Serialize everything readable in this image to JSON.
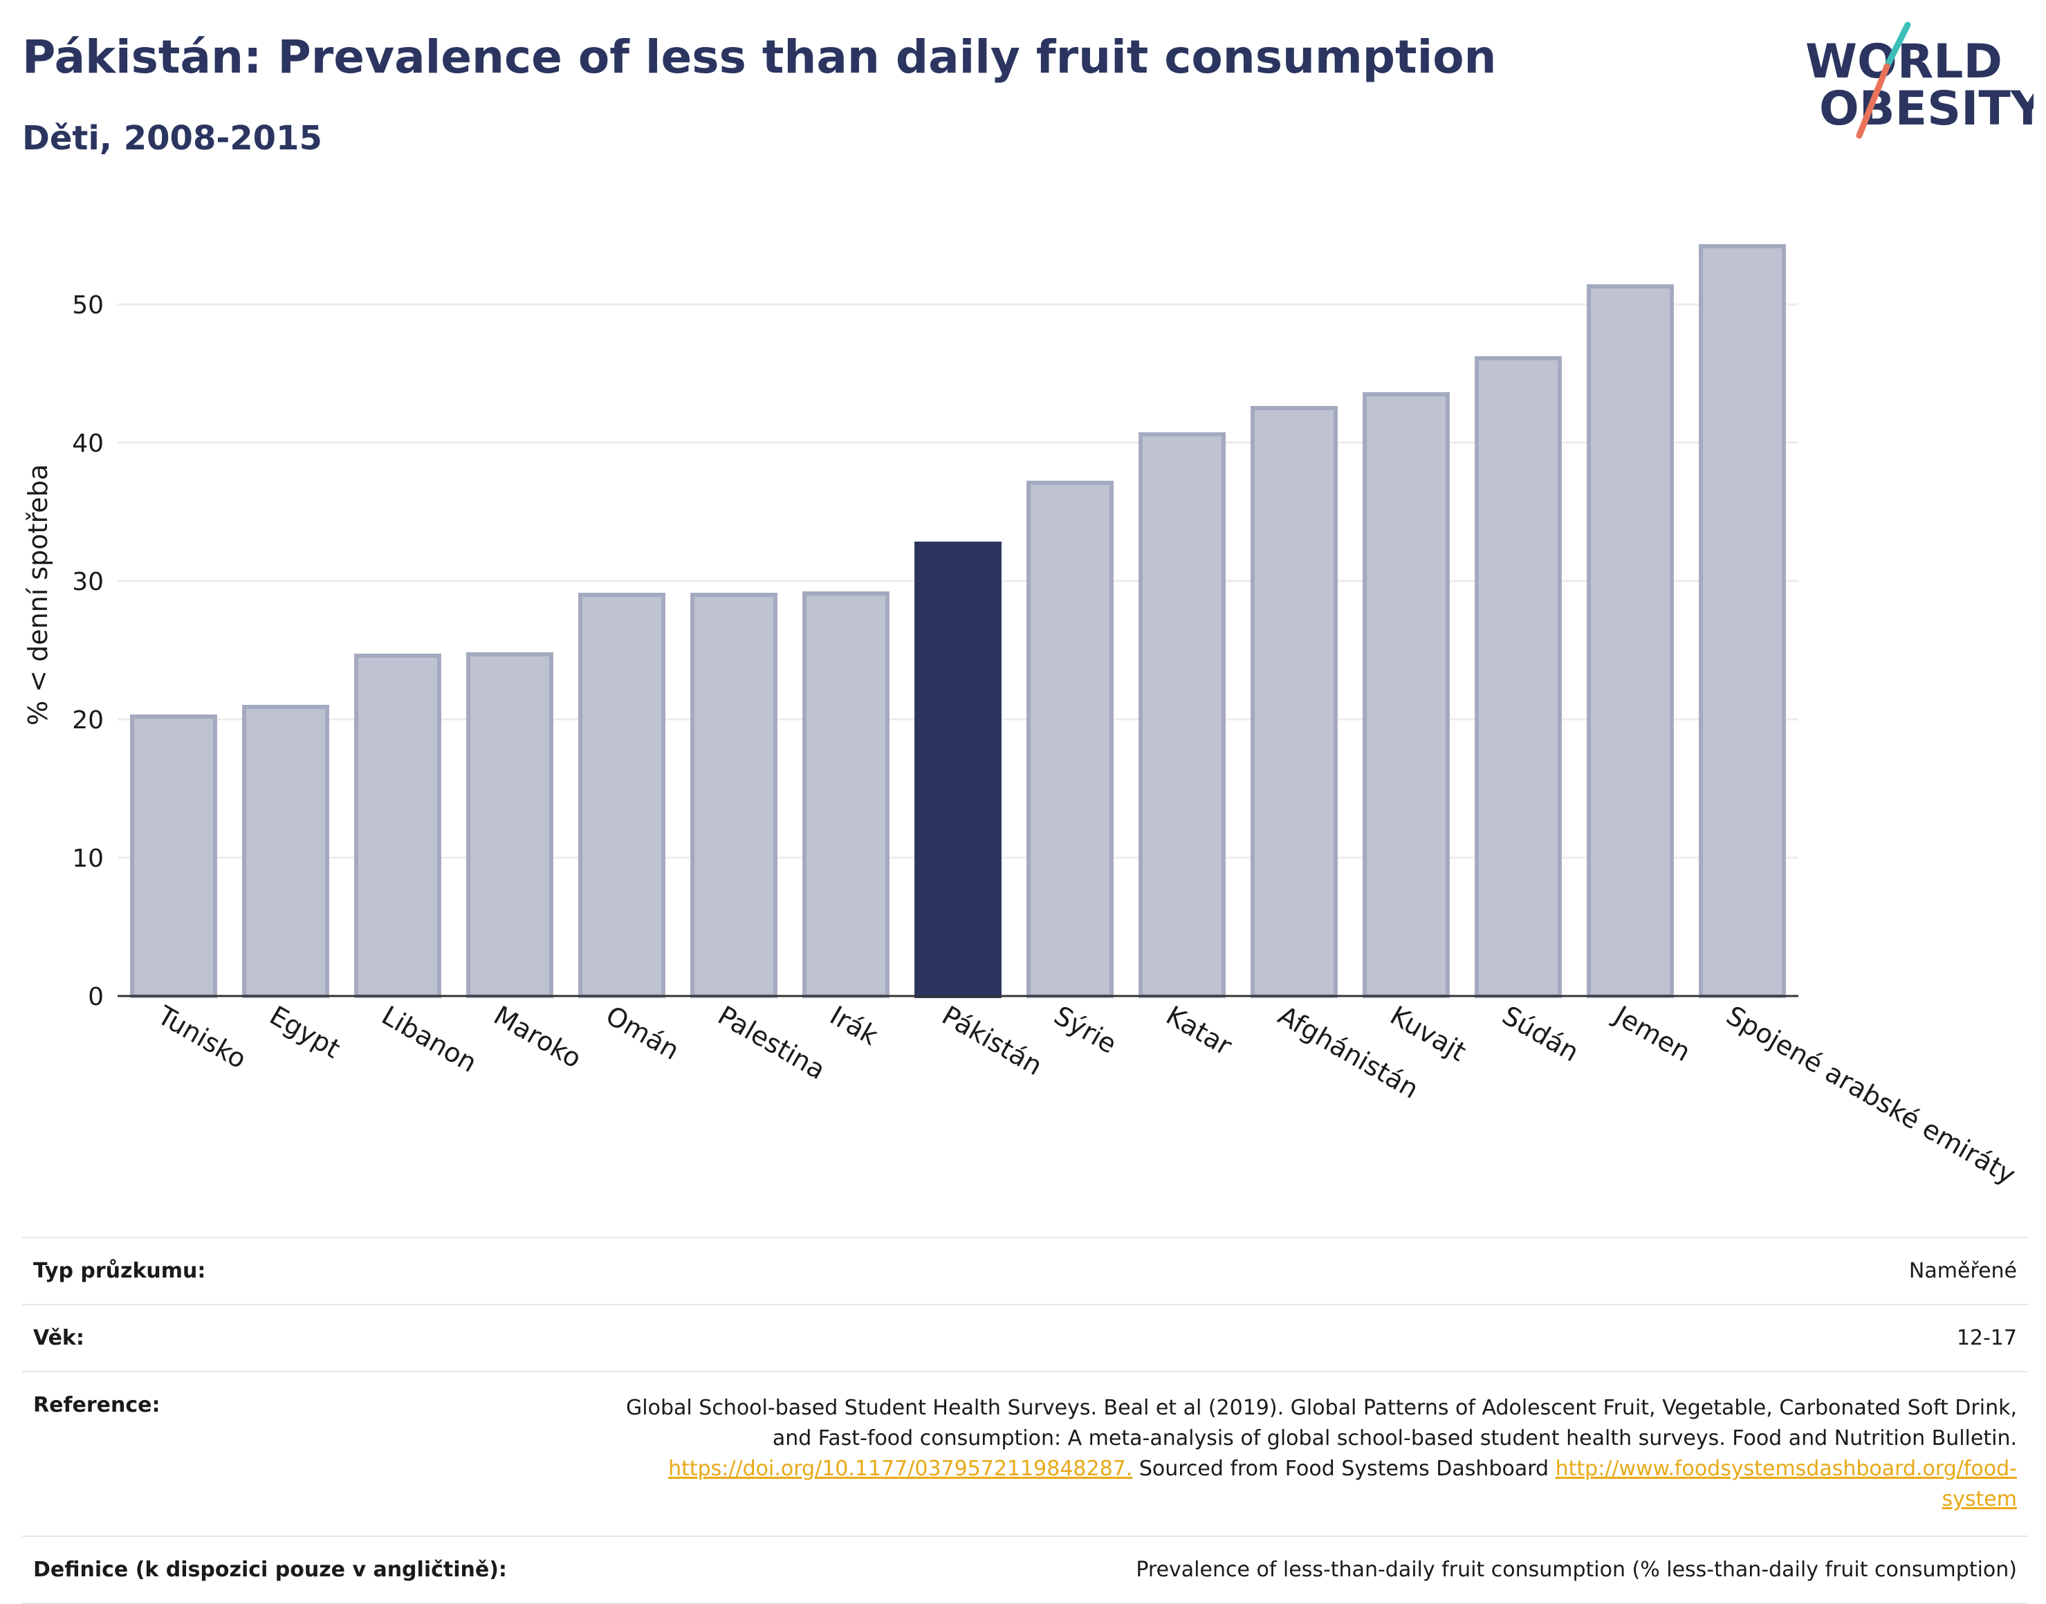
{
  "header": {
    "title": "Pákistán: Prevalence of less than daily fruit consumption",
    "subtitle": "Děti, 2008-2015"
  },
  "logo": {
    "line1": "WORLD",
    "line2": "OBESITY",
    "accent_teal": "#3bbfb8",
    "accent_coral": "#e8735a",
    "text_color": "#2b3560"
  },
  "chart_data": {
    "type": "bar",
    "categories": [
      "Tunisko",
      "Egypt",
      "Libanon",
      "Maroko",
      "Omán",
      "Palestina",
      "Irák",
      "Pákistán",
      "Sýrie",
      "Katar",
      "Afghánistán",
      "Kuvajt",
      "Súdán",
      "Jemen",
      "Spojené arabské emiráty"
    ],
    "values": [
      20.2,
      20.9,
      24.6,
      24.7,
      29.0,
      29.0,
      29.1,
      32.7,
      37.1,
      40.6,
      42.5,
      43.5,
      46.1,
      51.3,
      54.2
    ],
    "highlight": "Pákistán",
    "ylabel": "% < denní spotřeba",
    "xlabel": "",
    "ylim": [
      0,
      57
    ],
    "yticks": [
      0,
      10,
      20,
      30,
      40,
      50
    ],
    "grid": true,
    "colors": {
      "bar_fill": "#bfc3d1",
      "bar_stroke": "#a3a9bf",
      "highlight_fill": "#2b3560",
      "grid": "#ececec",
      "axis": "#333333"
    }
  },
  "info": {
    "rows": [
      {
        "label": "Typ průzkumu:",
        "value": "Naměřené"
      },
      {
        "label": "Věk:",
        "value": "12-17"
      },
      {
        "label": "Reference:",
        "line1": "Global School-based Student Health Surveys. Beal et al (2019). Global Patterns of Adolescent Fruit, Vegetable, Carbonated Soft Drink,",
        "line2": "and Fast-food consumption: A meta-analysis of global school-based student health surveys. Food and Nutrition Bulletin.",
        "link1": "https://doi.org/10.1177/0379572119848287.",
        "mid": " Sourced from Food Systems Dashboard ",
        "link2a": "http://www.foodsystemsdashboard.org/food-",
        "link2b": "system"
      },
      {
        "label": "Definice (k dispozici pouze v angličtině):",
        "value": "Prevalence of less-than-daily fruit consumption (% less-than-daily fruit consumption)"
      }
    ]
  }
}
